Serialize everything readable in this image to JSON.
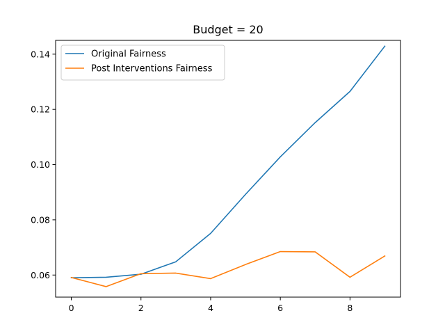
{
  "chart_data": {
    "type": "line",
    "title": "Budget = 20",
    "xlabel": "",
    "ylabel": "",
    "x": [
      0,
      1,
      2,
      3,
      4,
      5,
      6,
      7,
      8,
      9
    ],
    "xlim": [
      -0.45,
      9.45
    ],
    "ylim": [
      0.052,
      0.145
    ],
    "xticks": [
      0,
      2,
      4,
      6,
      8
    ],
    "xtick_labels": [
      "0",
      "2",
      "4",
      "6",
      "8"
    ],
    "yticks": [
      0.06,
      0.08,
      0.1,
      0.12,
      0.14
    ],
    "ytick_labels": [
      "0.06",
      "0.08",
      "0.10",
      "0.12",
      "0.14"
    ],
    "grid": false,
    "legend_position": "top-left",
    "series": [
      {
        "name": "Original Fairness",
        "color": "#1f77b4",
        "values": [
          0.059,
          0.0592,
          0.0603,
          0.0648,
          0.0751,
          0.0892,
          0.1028,
          0.1152,
          0.1265,
          0.1429
        ]
      },
      {
        "name": "Post Interventions Fairness",
        "color": "#ff7f0e",
        "values": [
          0.0591,
          0.0558,
          0.0605,
          0.0607,
          0.0587,
          0.0638,
          0.0685,
          0.0684,
          0.0592,
          0.0669
        ]
      }
    ]
  }
}
